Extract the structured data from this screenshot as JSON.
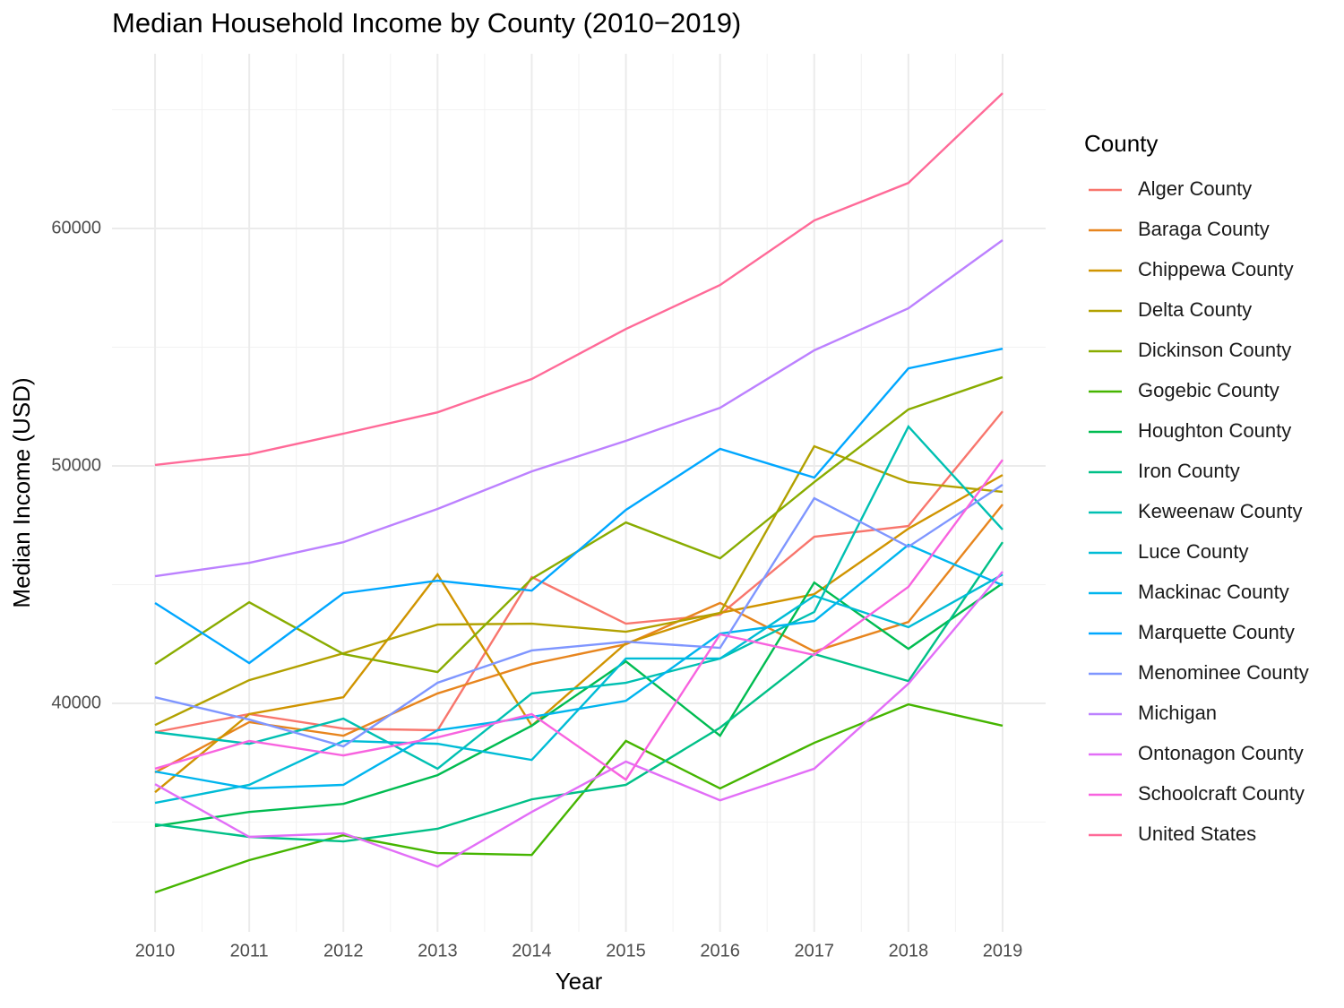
{
  "chart_data": {
    "type": "line",
    "title": "Median Household Income by County (2010−2019)",
    "x_label": "Year",
    "y_label": "Median Income (USD)",
    "legend_title": "County",
    "x": [
      2010,
      2011,
      2012,
      2013,
      2014,
      2015,
      2016,
      2017,
      2018,
      2019
    ],
    "xlim": [
      2009.543,
      2019.457
    ],
    "xticks": [
      2010,
      2011,
      2012,
      2013,
      2014,
      2015,
      2016,
      2017,
      2018,
      2019
    ],
    "ylim": [
      30380,
      67360
    ],
    "yticks": [
      40000,
      50000,
      60000
    ],
    "grid": true,
    "legend": "right",
    "series": [
      {
        "name": "Alger County",
        "color": "#F8766D",
        "values": [
          38790,
          39550,
          38940,
          38870,
          45320,
          43360,
          43740,
          47020,
          47470,
          52300
        ]
      },
      {
        "name": "Baraga County",
        "color": "#E7851E",
        "values": [
          37090,
          39210,
          38640,
          40420,
          41660,
          42490,
          44230,
          42190,
          43430,
          48380
        ]
      },
      {
        "name": "Chippewa County",
        "color": "#D09400",
        "values": [
          36260,
          39550,
          40260,
          45430,
          39060,
          42530,
          43810,
          44600,
          47360,
          49620
        ]
      },
      {
        "name": "Delta County",
        "color": "#B2A100",
        "values": [
          39090,
          40980,
          42110,
          43320,
          43360,
          43020,
          43810,
          50830,
          49320,
          48910
        ]
      },
      {
        "name": "Dickinson County",
        "color": "#89AC00",
        "values": [
          41660,
          44260,
          42080,
          41320,
          45250,
          47620,
          46110,
          49320,
          52380,
          53740
        ]
      },
      {
        "name": "Gogebic County",
        "color": "#45B500",
        "values": [
          32040,
          33400,
          34450,
          33700,
          33620,
          38420,
          36420,
          38340,
          39960,
          39060
        ]
      },
      {
        "name": "Houghton County",
        "color": "#00BC51",
        "values": [
          34830,
          35430,
          35770,
          36980,
          39060,
          41770,
          38640,
          45090,
          42300,
          45060
        ]
      },
      {
        "name": "Iron County",
        "color": "#00C087",
        "values": [
          34910,
          34380,
          34190,
          34720,
          35960,
          36570,
          38980,
          42080,
          40940,
          46790
        ]
      },
      {
        "name": "Keweenaw County",
        "color": "#00C0B2",
        "values": [
          38790,
          38300,
          39360,
          37250,
          40420,
          40870,
          41890,
          43850,
          51660,
          47320
        ]
      },
      {
        "name": "Luce County",
        "color": "#00BCD6",
        "values": [
          35810,
          36570,
          38420,
          38300,
          37620,
          41890,
          41890,
          44530,
          43210,
          45430
        ]
      },
      {
        "name": "Mackinac County",
        "color": "#00B5EE",
        "values": [
          37130,
          36420,
          36570,
          38870,
          39430,
          40110,
          42940,
          43470,
          46680,
          44980
        ]
      },
      {
        "name": "Marquette County",
        "color": "#00A7FF",
        "values": [
          44230,
          41700,
          44640,
          45170,
          44750,
          48150,
          50720,
          49510,
          54110,
          54940
        ]
      },
      {
        "name": "Menominee County",
        "color": "#7F96FF",
        "values": [
          40260,
          39320,
          38190,
          40870,
          42230,
          42600,
          42340,
          48640,
          46600,
          49210
        ]
      },
      {
        "name": "Michigan",
        "color": "#BC81FF",
        "values": [
          45360,
          45920,
          46790,
          48190,
          49770,
          51060,
          52450,
          54870,
          56640,
          59510
        ]
      },
      {
        "name": "Ontonagon County",
        "color": "#E26EF7",
        "values": [
          36600,
          34380,
          34530,
          33130,
          35430,
          37550,
          35920,
          37250,
          40830,
          45550
        ]
      },
      {
        "name": "Schoolcraft County",
        "color": "#F863DF",
        "values": [
          37250,
          38420,
          37810,
          38570,
          39550,
          36790,
          42910,
          42040,
          44910,
          50260
        ]
      },
      {
        "name": "United States",
        "color": "#FF6A98",
        "values": [
          50040,
          50490,
          51360,
          52260,
          53660,
          55770,
          57620,
          60340,
          61920,
          65700
        ]
      }
    ]
  }
}
